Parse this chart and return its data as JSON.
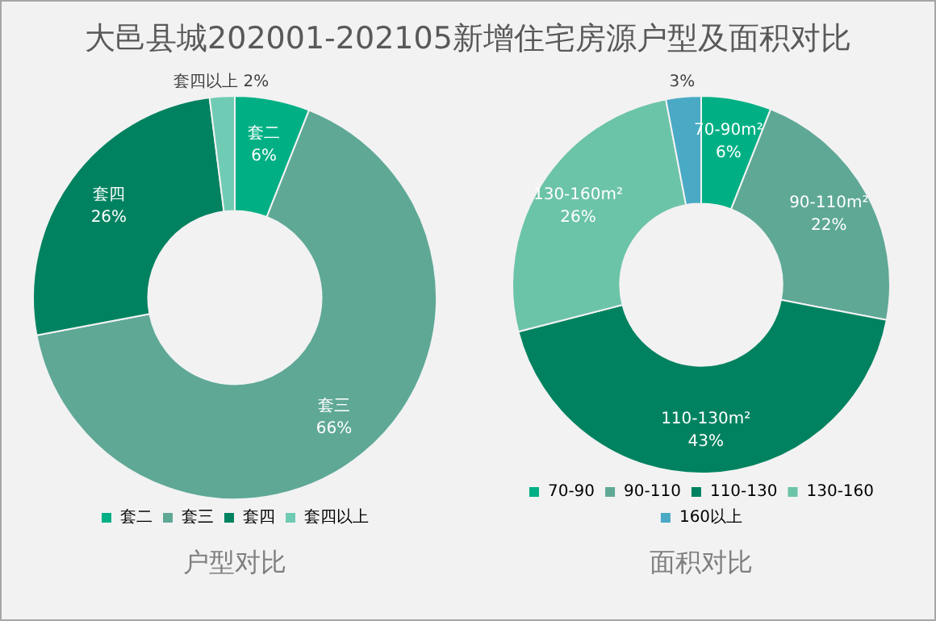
{
  "chart_data": [
    {
      "type": "donut",
      "title": "大邑县城202001-202105新增住宅房源户型及面积对比",
      "xlabel": "户型对比",
      "categories": [
        "套二",
        "套三",
        "套四",
        "套四以上"
      ],
      "values": [
        6,
        66,
        26,
        2
      ],
      "colors": [
        "#00b084",
        "#5fa896",
        "#008260",
        "#6fcbb3"
      ],
      "value_labels": [
        "套二\n6%",
        "套三\n66%",
        "套四\n26%",
        "套四以上\n2%"
      ],
      "legend": "bottom"
    },
    {
      "type": "donut",
      "xlabel": "面积对比",
      "categories": [
        "70-90",
        "90-110",
        "110-130",
        "130-160",
        "160以上"
      ],
      "values": [
        6,
        22,
        43,
        26,
        3
      ],
      "colors": [
        "#00b084",
        "#5fa896",
        "#008260",
        "#6cc4a8",
        "#4aaac6"
      ],
      "value_labels": [
        "70-90m²\n6%",
        "90-110m²\n22%",
        "110-130m²\n43%",
        "130-160m²\n26%",
        "3%"
      ],
      "legend": "bottom"
    }
  ]
}
